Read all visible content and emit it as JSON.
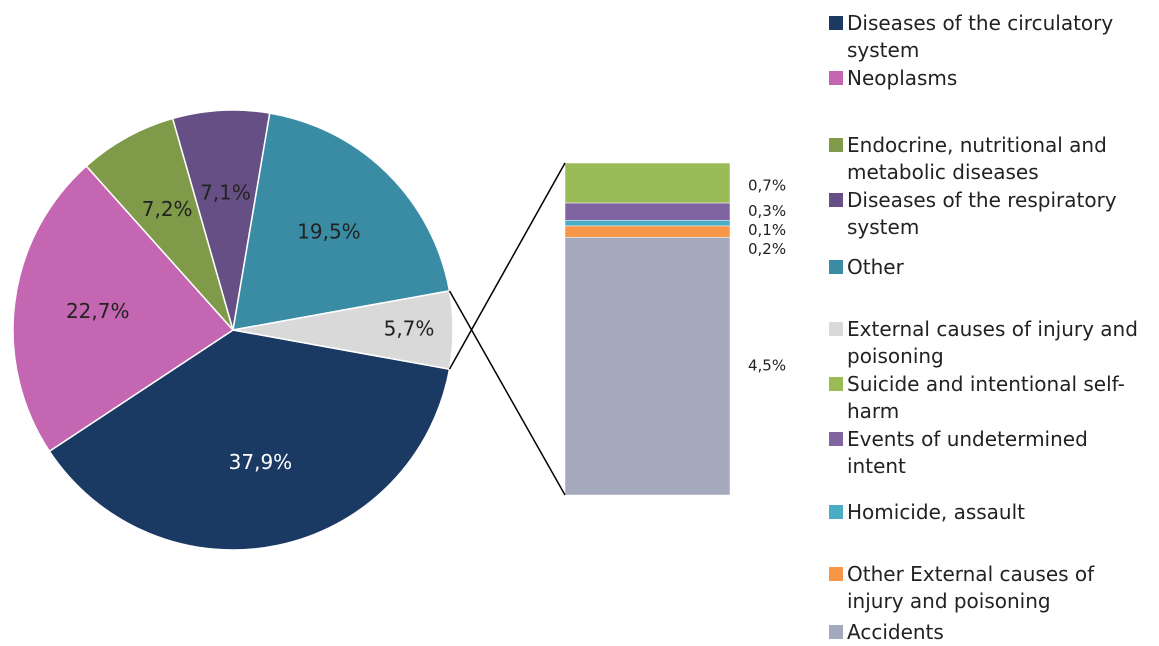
{
  "chart_data": {
    "type": "pie-of-bar",
    "categories": [
      "Diseases of the circulatory system",
      "Neoplasms",
      "Endocrine, nutritional and metabolic diseases",
      "Diseases of the respiratory system",
      "Other",
      "External causes of injury and poisoning"
    ],
    "values": [
      37.9,
      22.7,
      7.2,
      7.1,
      19.5,
      5.7
    ],
    "value_labels": [
      "37,9%",
      "22,7%",
      "7,2%",
      "7,1%",
      "19,5%",
      "5,7%"
    ],
    "colors": [
      "#1b3a63",
      "#c466b1",
      "#7f9a48",
      "#664f85",
      "#3a8ca4",
      "#d9d9d9"
    ],
    "bar": {
      "categories": [
        "Suicide and intentional self-harm",
        "Events of undetermined intent",
        "Homicide, assault",
        "Other External causes of injury and poisoning",
        "Accidents"
      ],
      "values": [
        0.7,
        0.3,
        0.1,
        0.2,
        4.5
      ],
      "value_labels": [
        "0,7%",
        "0,3%",
        "0,1%",
        "0,2%",
        "4,5%"
      ],
      "colors": [
        "#9bbb59",
        "#8064a2",
        "#4bacc6",
        "#f79646",
        "#a5a9bc"
      ]
    }
  }
}
